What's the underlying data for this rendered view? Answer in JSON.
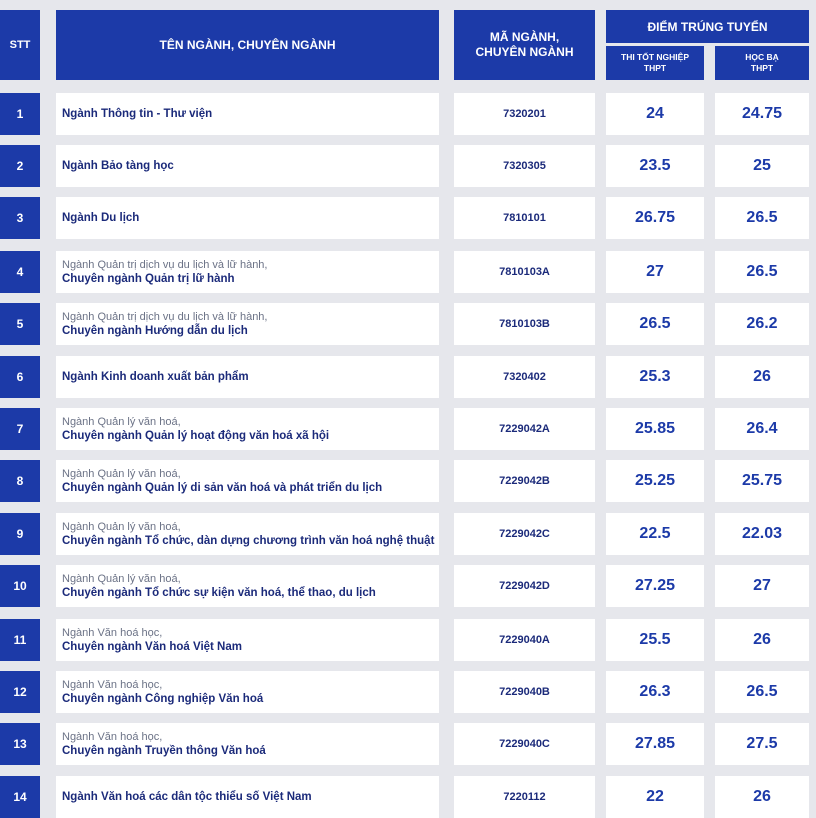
{
  "header": {
    "stt": "STT",
    "name": "TÊN NGÀNH, CHUYÊN NGÀNH",
    "code_line1": "MÃ NGÀNH,",
    "code_line2": "CHUYÊN NGÀNH",
    "score": "ĐIỂM TRÚNG TUYỂN",
    "sub1_line1": "THI TỐT NGHIỆP",
    "sub1_line2": "THPT",
    "sub2_line1": "HỌC BẠ",
    "sub2_line2": "THPT"
  },
  "rows": [
    {
      "stt": "1",
      "major": "",
      "spec": "Ngành Thông tin - Thư viện",
      "code": "7320201",
      "thpt": "24",
      "hocba": "24.75"
    },
    {
      "stt": "2",
      "major": "",
      "spec": "Ngành Bảo tàng học",
      "code": "7320305",
      "thpt": "23.5",
      "hocba": "25"
    },
    {
      "stt": "3",
      "major": "",
      "spec": "Ngành Du lịch",
      "code": "7810101",
      "thpt": "26.75",
      "hocba": "26.5"
    },
    {
      "stt": "4",
      "major": "Ngành Quản trị dịch vụ du lịch và lữ hành,",
      "spec": "Chuyên ngành Quản trị lữ hành",
      "code": "7810103A",
      "thpt": "27",
      "hocba": "26.5"
    },
    {
      "stt": "5",
      "major": "Ngành Quản trị dịch vụ du lịch và lữ hành,",
      "spec": "Chuyên ngành Hướng dẫn du lịch",
      "code": "7810103B",
      "thpt": "26.5",
      "hocba": "26.2"
    },
    {
      "stt": "6",
      "major": "",
      "spec": "Ngành Kinh doanh xuất bản phẩm",
      "code": "7320402",
      "thpt": "25.3",
      "hocba": "26"
    },
    {
      "stt": "7",
      "major": "Ngành Quản lý văn hoá,",
      "spec": "Chuyên ngành Quản lý hoạt động văn hoá xã hội",
      "code": "7229042A",
      "thpt": "25.85",
      "hocba": "26.4"
    },
    {
      "stt": "8",
      "major": "Ngành Quản lý văn hoá,",
      "spec": "Chuyên ngành Quản lý di sản văn hoá và phát triển du lịch",
      "code": "7229042B",
      "thpt": "25.25",
      "hocba": "25.75"
    },
    {
      "stt": "9",
      "major": "Ngành Quản lý văn hoá,",
      "spec": "Chuyên ngành Tổ chức, dàn dựng chương trình văn hoá nghệ thuật",
      "code": "7229042C",
      "thpt": "22.5",
      "hocba": "22.03"
    },
    {
      "stt": "10",
      "major": "Ngành Quản lý văn hoá,",
      "spec": "Chuyên ngành Tổ chức sự kiện văn hoá, thể thao, du lịch",
      "code": "7229042D",
      "thpt": "27.25",
      "hocba": "27"
    },
    {
      "stt": "11",
      "major": "Ngành Văn hoá học,",
      "spec": "Chuyên ngành Văn hoá Việt Nam",
      "code": "7229040A",
      "thpt": "25.5",
      "hocba": "26"
    },
    {
      "stt": "12",
      "major": "Ngành Văn hoá học,",
      "spec": "Chuyên ngành Công nghiệp Văn hoá",
      "code": "7229040B",
      "thpt": "26.3",
      "hocba": "26.5"
    },
    {
      "stt": "13",
      "major": "Ngành Văn hoá học,",
      "spec": "Chuyên ngành Truyền thông Văn hoá",
      "code": "7229040C",
      "thpt": "27.85",
      "hocba": "27.5"
    },
    {
      "stt": "14",
      "major": "",
      "spec": "Ngành Văn hoá các dân tộc thiểu số Việt Nam",
      "code": "7220112",
      "thpt": "22",
      "hocba": "26"
    }
  ]
}
